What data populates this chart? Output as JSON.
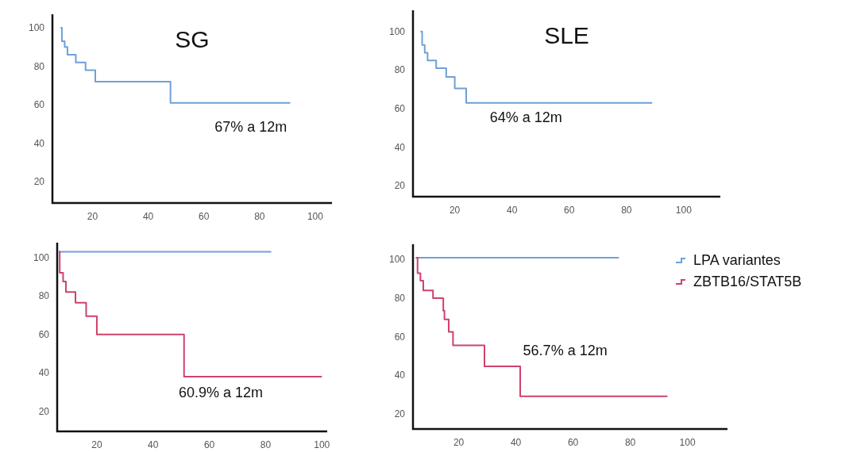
{
  "chart_data": [
    {
      "type": "step",
      "title": "SG",
      "annotations": [
        "67% a 12m"
      ],
      "xlim": [
        5.6,
        106
      ],
      "ylim": [
        9,
        107
      ],
      "xticks": [
        20,
        40,
        60,
        80,
        100
      ],
      "yticks": [
        20,
        40,
        60,
        80,
        100
      ],
      "series": [
        {
          "color": "#6fa0d8",
          "x": [
            8.5,
            9,
            10,
            11,
            14,
            17.5,
            21,
            48,
            91
          ],
          "values": [
            100,
            93,
            90,
            86,
            82,
            78,
            72,
            61,
            61
          ]
        }
      ]
    },
    {
      "type": "step",
      "title": "SLE",
      "annotations": [
        "64% a 12m"
      ],
      "xlim": [
        5.4,
        112.8
      ],
      "ylim": [
        14.4,
        111
      ],
      "xticks": [
        20,
        40,
        60,
        80,
        100
      ],
      "yticks": [
        20,
        40,
        60,
        80,
        100
      ],
      "series": [
        {
          "color": "#6fa0d8",
          "x": [
            8,
            8.6,
            9.5,
            10.5,
            13.5,
            17,
            20,
            24,
            89
          ],
          "values": [
            100,
            93,
            89,
            85,
            81,
            76.5,
            70.5,
            63,
            63
          ]
        }
      ]
    },
    {
      "type": "step",
      "annotations": [
        "60.9% a 12m"
      ],
      "xlim": [
        5.9,
        101.9
      ],
      "ylim": [
        9.6,
        107.7
      ],
      "xticks": [
        20,
        40,
        60,
        80,
        100
      ],
      "yticks": [
        20,
        40,
        60,
        80,
        100
      ],
      "series": [
        {
          "color": "#6fa0d8",
          "x": [
            6.5,
            82
          ],
          "values": [
            103,
            103
          ]
        },
        {
          "color": "#d0416a",
          "x": [
            6.5,
            6.8,
            8,
            9,
            12.4,
            16.2,
            20,
            51,
            100
          ],
          "values": [
            103,
            92,
            87.5,
            82,
            76.5,
            69.5,
            60,
            38,
            38
          ]
        }
      ]
    },
    {
      "type": "step",
      "annotations": [
        "56.7% a 12m"
      ],
      "xlim": [
        4,
        114
      ],
      "ylim": [
        12,
        108
      ],
      "xticks": [
        20,
        40,
        60,
        80,
        100
      ],
      "yticks": [
        20,
        40,
        60,
        80,
        100
      ],
      "legend": "right",
      "series": [
        {
          "name": "LPA variantes",
          "color": "#6fa0d8",
          "x": [
            5,
            76
          ],
          "values": [
            101,
            101
          ]
        },
        {
          "name": "ZBTB16/STAT5B",
          "color": "#d0416a",
          "x": [
            5,
            5.6,
            6.6,
            7.6,
            11,
            14.6,
            15,
            16.5,
            18,
            29,
            41.5,
            93
          ],
          "values": [
            101,
            93,
            89,
            84,
            80,
            73.5,
            69,
            62.5,
            55.5,
            44.5,
            29,
            29
          ]
        }
      ]
    }
  ]
}
